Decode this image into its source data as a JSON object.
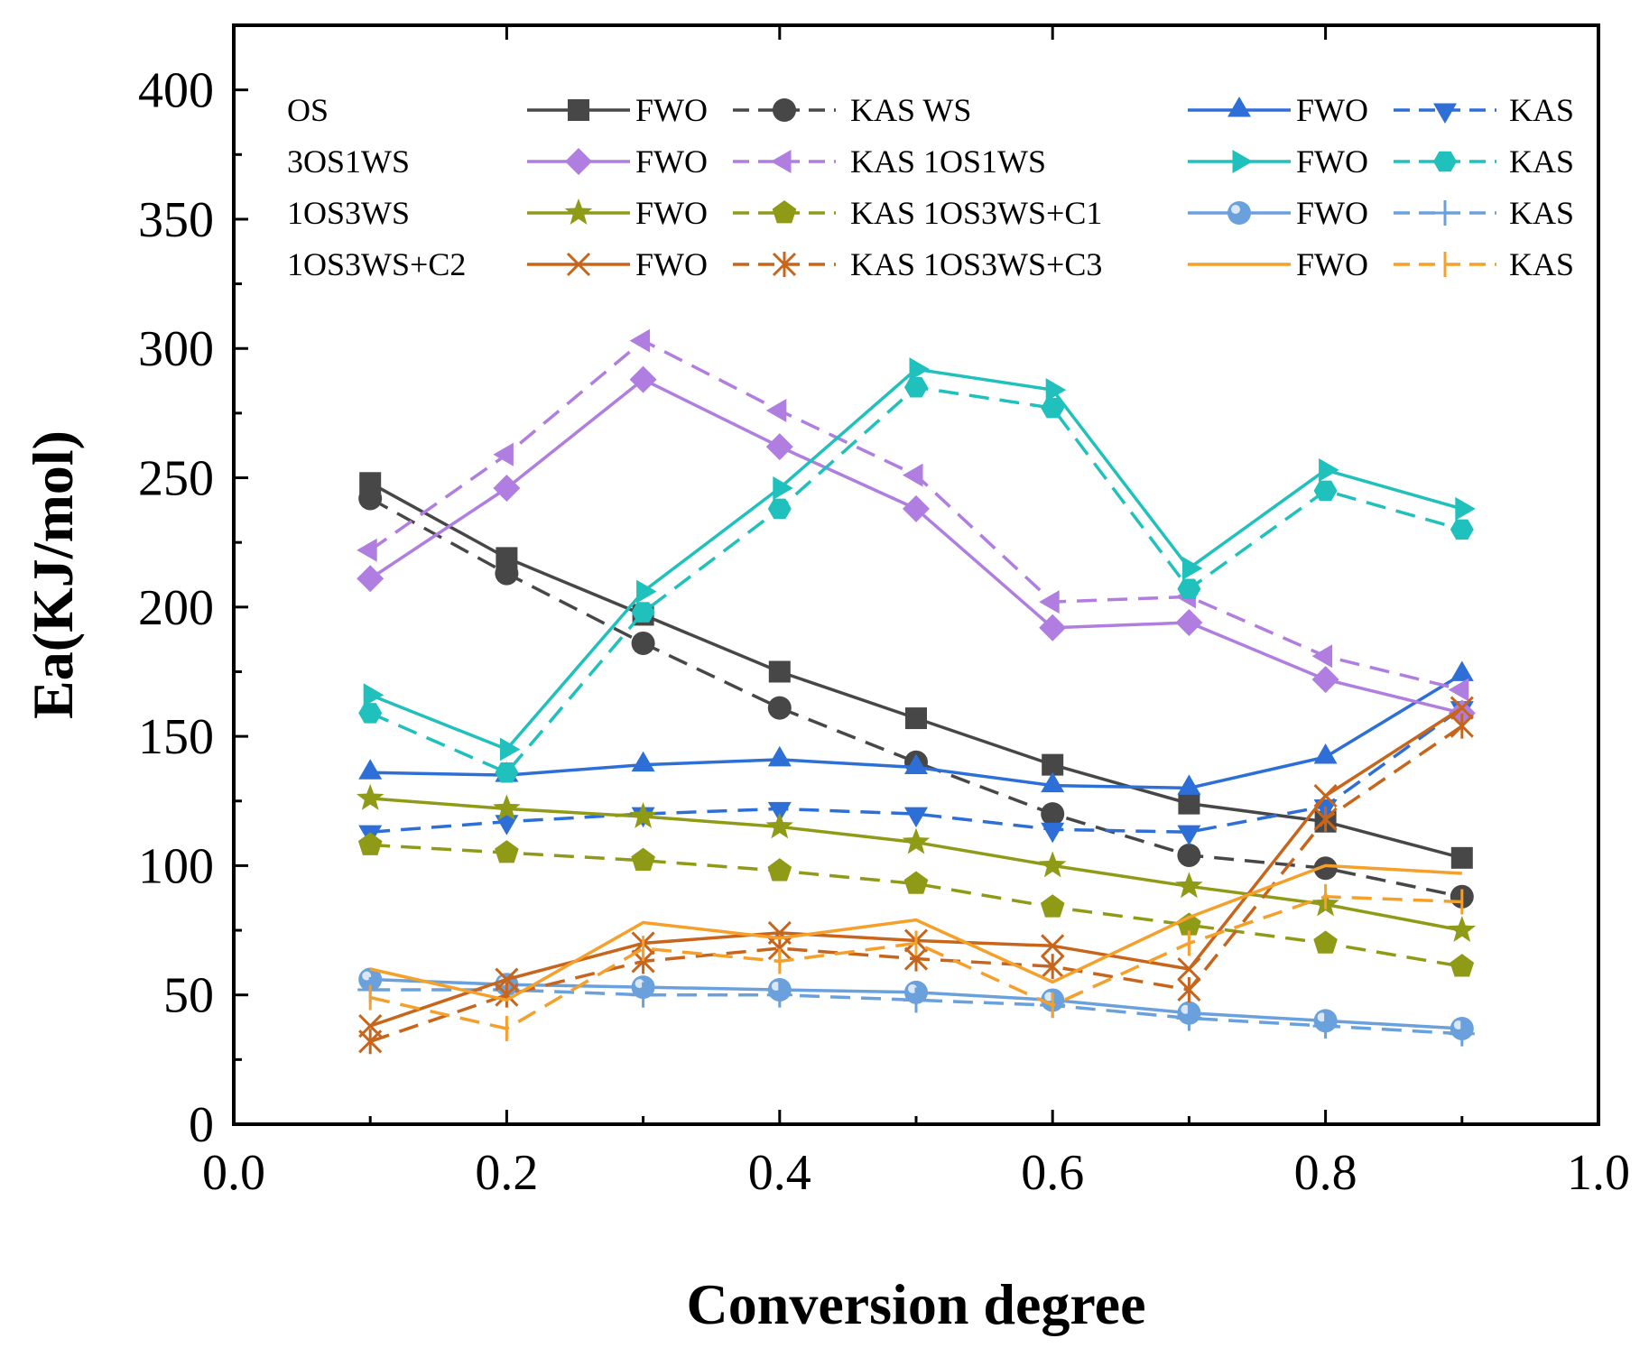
{
  "chart_data": {
    "type": "line",
    "title": "",
    "xlabel": "Conversion degree",
    "ylabel": "Ea(KJ/mol)",
    "xlim": [
      0.0,
      1.0
    ],
    "ylim": [
      0,
      425
    ],
    "x_ticks": [
      0.0,
      0.2,
      0.4,
      0.6,
      0.8,
      1.0
    ],
    "x_tick_labels": [
      "0.0",
      "0.2",
      "0.4",
      "0.6",
      "0.8",
      "1.0"
    ],
    "y_ticks": [
      0,
      50,
      100,
      150,
      200,
      250,
      300,
      350,
      400
    ],
    "y_tick_labels": [
      "0",
      "50",
      "100",
      "150",
      "200",
      "250",
      "300",
      "350",
      "400"
    ],
    "grid": false,
    "legend_position": "top",
    "x": [
      0.1,
      0.2,
      0.3,
      0.4,
      0.5,
      0.6,
      0.7,
      0.8,
      0.9
    ],
    "legend_groups": [
      {
        "name": "OS",
        "fwo_label": "FWO",
        "kas_label": "KAS"
      },
      {
        "name": "WS",
        "fwo_label": "FWO",
        "kas_label": "KAS"
      },
      {
        "name": "3OS1WS",
        "fwo_label": "FWO",
        "kas_label": "KAS"
      },
      {
        "name": "1OS1WS",
        "fwo_label": "FWO",
        "kas_label": "KAS"
      },
      {
        "name": "1OS3WS",
        "fwo_label": "FWO",
        "kas_label": "KAS"
      },
      {
        "name": "1OS3WS+C1",
        "fwo_label": "FWO",
        "kas_label": "KAS"
      },
      {
        "name": "1OS3WS+C2",
        "fwo_label": "FWO",
        "kas_label": "KAS"
      },
      {
        "name": "1OS3WS+C3",
        "fwo_label": "FWO",
        "kas_label": "KAS"
      }
    ],
    "series": [
      {
        "group": "OS",
        "method": "FWO",
        "color": "#474747",
        "marker": "square",
        "dash": false,
        "values": [
          248,
          219,
          197,
          175,
          157,
          139,
          124,
          117,
          103
        ]
      },
      {
        "group": "OS",
        "method": "KAS",
        "color": "#474747",
        "marker": "circle",
        "dash": true,
        "values": [
          242,
          213,
          186,
          161,
          140,
          120,
          104,
          99,
          88
        ]
      },
      {
        "group": "WS",
        "method": "FWO",
        "color": "#2d6fd6",
        "marker": "triangle-up",
        "dash": false,
        "values": [
          136,
          135,
          139,
          141,
          138,
          131,
          130,
          142,
          174
        ]
      },
      {
        "group": "WS",
        "method": "KAS",
        "color": "#2d6fd6",
        "marker": "triangle-down",
        "dash": true,
        "values": [
          113,
          117,
          120,
          122,
          120,
          114,
          113,
          123,
          161
        ]
      },
      {
        "group": "3OS1WS",
        "method": "FWO",
        "color": "#b07ee0",
        "marker": "diamond",
        "dash": false,
        "values": [
          211,
          246,
          288,
          262,
          238,
          192,
          194,
          172,
          159
        ]
      },
      {
        "group": "3OS1WS",
        "method": "KAS",
        "color": "#b07ee0",
        "marker": "triangle-left",
        "dash": true,
        "values": [
          222,
          259,
          303,
          276,
          251,
          202,
          204,
          181,
          168
        ]
      },
      {
        "group": "1OS1WS",
        "method": "FWO",
        "color": "#20c0bd",
        "marker": "triangle-right",
        "dash": false,
        "values": [
          166,
          145,
          206,
          246,
          292,
          284,
          215,
          253,
          238
        ]
      },
      {
        "group": "1OS1WS",
        "method": "KAS",
        "color": "#20c0bd",
        "marker": "hexagon",
        "dash": true,
        "values": [
          159,
          136,
          198,
          238,
          285,
          277,
          207,
          245,
          230
        ]
      },
      {
        "group": "1OS3WS",
        "method": "FWO",
        "color": "#8f9a16",
        "marker": "star",
        "dash": false,
        "values": [
          126,
          122,
          119,
          115,
          109,
          100,
          92,
          85,
          75
        ]
      },
      {
        "group": "1OS3WS",
        "method": "KAS",
        "color": "#8f9a16",
        "marker": "pentagon",
        "dash": true,
        "values": [
          108,
          105,
          102,
          98,
          93,
          84,
          77,
          70,
          61
        ]
      },
      {
        "group": "1OS3WS+C1",
        "method": "FWO",
        "color": "#6aa0dc",
        "marker": "ball",
        "dash": false,
        "values": [
          56,
          54,
          53,
          52,
          51,
          48,
          43,
          40,
          37
        ]
      },
      {
        "group": "1OS3WS+C1",
        "method": "KAS",
        "color": "#6aa0dc",
        "marker": "plus",
        "dash": true,
        "values": [
          52,
          52,
          50,
          50,
          48,
          46,
          41,
          38,
          35
        ]
      },
      {
        "group": "1OS3WS+C2",
        "method": "FWO",
        "color": "#c7651c",
        "marker": "x-star",
        "dash": false,
        "values": [
          38,
          56,
          70,
          74,
          71,
          69,
          60,
          127,
          161
        ]
      },
      {
        "group": "1OS3WS+C2",
        "method": "KAS",
        "color": "#c7651c",
        "marker": "asterisk",
        "dash": true,
        "values": [
          32,
          50,
          63,
          68,
          64,
          61,
          52,
          118,
          154
        ]
      },
      {
        "group": "1OS3WS+C3",
        "method": "FWO",
        "color": "#f5a02a",
        "marker": "none",
        "dash": false,
        "values": [
          60,
          48,
          78,
          72,
          79,
          55,
          80,
          100,
          97
        ]
      },
      {
        "group": "1OS3WS+C3",
        "method": "KAS",
        "color": "#f5a02a",
        "marker": "vbar",
        "dash": true,
        "values": [
          49,
          37,
          68,
          63,
          70,
          46,
          70,
          88,
          86
        ]
      }
    ],
    "legend_rows": [
      {
        "left_label": "OS",
        "mid_label": "KAS WS",
        "series_a": 0,
        "series_b": 1,
        "series_c": 2,
        "series_d": 3
      },
      {
        "left_label": "3OS1WS",
        "mid_label": "KAS 1OS1WS",
        "series_a": 4,
        "series_b": 5,
        "series_c": 6,
        "series_d": 7
      },
      {
        "left_label": "1OS3WS",
        "mid_label": "KAS 1OS3WS+C1",
        "series_a": 8,
        "series_b": 9,
        "series_c": 10,
        "series_d": 11
      },
      {
        "left_label": "1OS3WS+C2",
        "mid_label": "KAS 1OS3WS+C3",
        "series_a": 12,
        "series_b": 13,
        "series_c": 14,
        "series_d": 15
      }
    ]
  }
}
